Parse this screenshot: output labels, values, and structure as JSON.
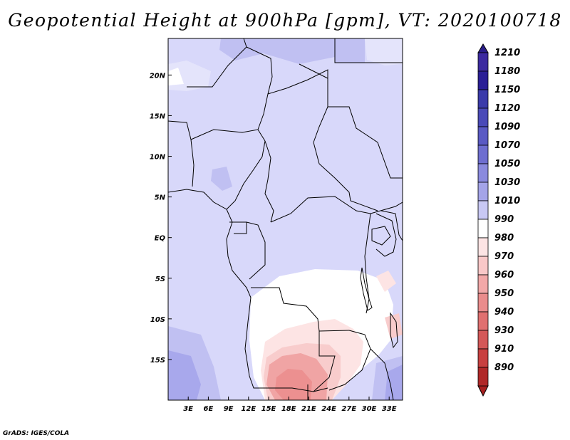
{
  "title": "Geopotential Height at 900hPa [gpm], VT: 2020100718",
  "credit": "GrADS: IGES/COLA",
  "lat_labels": [
    "20N",
    "15N",
    "10N",
    "5N",
    "EQ",
    "5S",
    "10S",
    "15S"
  ],
  "lat_values": [
    20,
    15,
    10,
    5,
    0,
    -5,
    -10,
    -15
  ],
  "lon_labels": [
    "3E",
    "6E",
    "9E",
    "12E",
    "15E",
    "18E",
    "21E",
    "24E",
    "27E",
    "30E",
    "33E"
  ],
  "lon_values": [
    3,
    6,
    9,
    12,
    15,
    18,
    21,
    24,
    27,
    30,
    33
  ],
  "map_extent": {
    "lon": [
      0,
      35
    ],
    "lat": [
      -20,
      24.5
    ]
  },
  "colorbar": {
    "labels": [
      "1210",
      "1180",
      "1150",
      "1120",
      "1090",
      "1070",
      "1050",
      "1030",
      "1010",
      "990",
      "980",
      "970",
      "960",
      "950",
      "940",
      "930",
      "910",
      "890"
    ],
    "colors": [
      "#3c2aa0",
      "#2a1e96",
      "#3a3aaa",
      "#4a4ab8",
      "#5a5ac4",
      "#6e6ed0",
      "#8a8ade",
      "#a4a4e8",
      "#c8c8f4",
      "#ffffff",
      "#fde4e4",
      "#f9c8c8",
      "#f2a8a8",
      "#ea8c8c",
      "#e07070",
      "#d45858",
      "#c84040",
      "#b02828"
    ],
    "top_arrow_color": "#2a1e8a",
    "bottom_arrow_color": "#a82020"
  },
  "field_colors": {
    "base": "#d8d8fa",
    "light": "#e4e4fb",
    "mid": "#c0c0f2",
    "dark": "#a8a8ec",
    "white": "#ffffff",
    "pink1": "#fde4e4",
    "pink2": "#f8cccc",
    "pink3": "#f0a4a4",
    "pink4": "#ec9090"
  }
}
